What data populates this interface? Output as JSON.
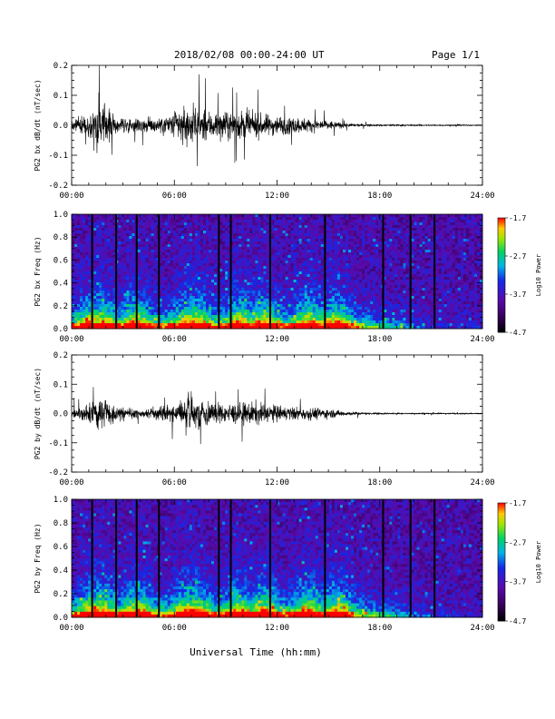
{
  "header": {
    "date_range": "2018/02/08  00:00-24:00 UT",
    "page": "Page 1/1"
  },
  "footer": {
    "xlabel": "Universal Time (hh:mm)"
  },
  "chart_data": [
    {
      "type": "line",
      "name": "bx-waveform",
      "ylabel": "PG2 bx dB/dt (nT/sec)",
      "xlim": [
        0,
        24
      ],
      "ylim": [
        -0.2,
        0.2
      ],
      "yticks": [
        "0.2",
        "0.1",
        "0.0",
        "-0.1",
        "-0.2"
      ],
      "xticks": [
        "00:00",
        "06:00",
        "12:00",
        "18:00",
        "24:00"
      ],
      "envelope": {
        "hours": [
          0,
          1,
          1.5,
          2,
          2.5,
          3,
          4,
          5,
          6,
          6.5,
          7,
          7.5,
          8,
          9,
          10,
          11,
          12,
          13,
          14,
          15,
          16,
          17,
          18,
          20,
          22,
          24
        ],
        "amplitude": [
          0.04,
          0.06,
          0.17,
          0.12,
          0.05,
          0.05,
          0.04,
          0.05,
          0.08,
          0.13,
          0.12,
          0.1,
          0.09,
          0.08,
          0.09,
          0.07,
          0.06,
          0.05,
          0.04,
          0.03,
          0.012,
          0.008,
          0.006,
          0.005,
          0.004,
          0.003
        ]
      }
    },
    {
      "type": "heatmap",
      "name": "bx-spectrogram",
      "ylabel": "PG2 bx Freq (Hz)",
      "colorbar_label": "Log10 Power",
      "colorbar_ticks": [
        "-1.7",
        "-2.7",
        "-3.7",
        "-4.7"
      ],
      "zlim": [
        -4.7,
        -1.7
      ],
      "xlim": [
        0,
        24
      ],
      "ylim": [
        0,
        1
      ],
      "yticks": [
        "1.0",
        "0.8",
        "0.6",
        "0.4",
        "0.2",
        "0.0"
      ],
      "xticks": [
        "00:00",
        "06:00",
        "12:00",
        "18:00",
        "24:00"
      ],
      "gap_hours": [
        1.2,
        2.6,
        3.8,
        5.1,
        8.6,
        9.3,
        11.6,
        14.8,
        18.2,
        19.8,
        21.2
      ],
      "activity_peaks_hours": [
        1.2,
        1.8,
        3.8,
        6.8,
        7.3,
        9.8,
        11.2,
        13.8,
        15.5
      ]
    },
    {
      "type": "line",
      "name": "by-waveform",
      "ylabel": "PG2 by dB/dt (nT/sec)",
      "xlim": [
        0,
        24
      ],
      "ylim": [
        -0.2,
        0.2
      ],
      "yticks": [
        "0.2",
        "0.1",
        "0.0",
        "-0.1",
        "-0.2"
      ],
      "xticks": [
        "00:00",
        "06:00",
        "12:00",
        "18:00",
        "24:00"
      ],
      "envelope": {
        "hours": [
          0,
          1,
          1.5,
          2,
          2.5,
          3,
          4,
          5,
          6,
          6.5,
          7,
          7.5,
          8,
          9,
          10,
          11,
          12,
          13,
          14,
          15,
          16,
          17,
          18,
          20,
          22,
          24
        ],
        "amplitude": [
          0.03,
          0.05,
          0.1,
          0.09,
          0.05,
          0.04,
          0.03,
          0.04,
          0.06,
          0.1,
          0.14,
          0.08,
          0.07,
          0.06,
          0.07,
          0.07,
          0.05,
          0.04,
          0.04,
          0.03,
          0.015,
          0.007,
          0.005,
          0.004,
          0.004,
          0.003
        ]
      }
    },
    {
      "type": "heatmap",
      "name": "by-spectrogram",
      "ylabel": "PG2 by Freq (Hz)",
      "colorbar_label": "Log10 Power",
      "colorbar_ticks": [
        "-1.7",
        "-2.7",
        "-3.7",
        "-4.7"
      ],
      "zlim": [
        -4.7,
        -1.7
      ],
      "xlim": [
        0,
        24
      ],
      "ylim": [
        0,
        1
      ],
      "yticks": [
        "1.0",
        "0.8",
        "0.6",
        "0.4",
        "0.2",
        "0.0"
      ],
      "xticks": [
        "00:00",
        "06:00",
        "12:00",
        "18:00",
        "24:00"
      ],
      "gap_hours": [
        1.2,
        2.6,
        3.8,
        5.1,
        8.6,
        9.3,
        11.6,
        14.8,
        18.2,
        19.8,
        21.2
      ],
      "activity_peaks_hours": [
        1.2,
        1.8,
        3.8,
        6.8,
        7.3,
        9.8,
        11.2,
        13.8,
        15.5
      ]
    }
  ]
}
